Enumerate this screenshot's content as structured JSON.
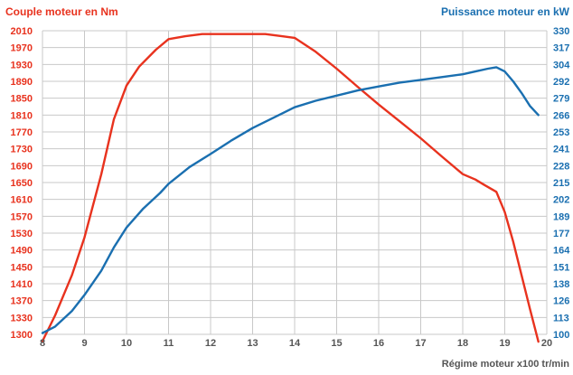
{
  "colors": {
    "torque": "#e8321e",
    "power": "#1a6fb0",
    "grid": "#c8c8c8",
    "axis_text": "#555555",
    "background": "#ffffff"
  },
  "chart_data": {
    "type": "line",
    "title_left": "Couple moteur en Nm",
    "title_right": "Puissance moteur en kW",
    "xlabel": "Régime moteur x100 tr/min",
    "x_ticks": [
      "8",
      "9",
      "10",
      "11",
      "12",
      "13",
      "14",
      "15",
      "16",
      "17",
      "18",
      "19",
      "20"
    ],
    "xlim": [
      8,
      20
    ],
    "y_left_ticks": [
      "2010",
      "1970",
      "1930",
      "1890",
      "1850",
      "1810",
      "1770",
      "1730",
      "1690",
      "1650",
      "1610",
      "1570",
      "1530",
      "1490",
      "1450",
      "1410",
      "1370",
      "1330",
      "1300"
    ],
    "y_right_ticks": [
      "330",
      "317",
      "304",
      "292",
      "279",
      "266",
      "253",
      "241",
      "228",
      "215",
      "202",
      "189",
      "177",
      "164",
      "151",
      "138",
      "126",
      "113",
      "100"
    ],
    "grid": true,
    "series": [
      {
        "axis": "left",
        "color": "#e8321e",
        "points": [
          [
            8.0,
            1288
          ],
          [
            8.3,
            1335
          ],
          [
            8.7,
            1430
          ],
          [
            9.0,
            1520
          ],
          [
            9.4,
            1670
          ],
          [
            9.7,
            1800
          ],
          [
            10.0,
            1880
          ],
          [
            10.3,
            1925
          ],
          [
            10.7,
            1965
          ],
          [
            11.0,
            1990
          ],
          [
            11.4,
            1997
          ],
          [
            11.8,
            2002
          ],
          [
            12.3,
            2002
          ],
          [
            12.8,
            2002
          ],
          [
            13.3,
            2002
          ],
          [
            13.7,
            1997
          ],
          [
            14.0,
            1993
          ],
          [
            14.5,
            1960
          ],
          [
            15.0,
            1920
          ],
          [
            15.5,
            1877
          ],
          [
            16.0,
            1835
          ],
          [
            16.5,
            1795
          ],
          [
            17.0,
            1755
          ],
          [
            17.5,
            1712
          ],
          [
            18.0,
            1670
          ],
          [
            18.3,
            1657
          ],
          [
            18.5,
            1645
          ],
          [
            18.8,
            1628
          ],
          [
            19.0,
            1580
          ],
          [
            19.2,
            1510
          ],
          [
            19.4,
            1430
          ],
          [
            19.6,
            1350
          ],
          [
            19.8,
            1287
          ]
        ]
      },
      {
        "axis": "right",
        "color": "#1a6fb0",
        "points": [
          [
            8.0,
            101
          ],
          [
            8.3,
            106
          ],
          [
            8.7,
            118
          ],
          [
            9.0,
            130
          ],
          [
            9.4,
            148
          ],
          [
            9.7,
            166
          ],
          [
            10.0,
            181
          ],
          [
            10.4,
            195
          ],
          [
            10.8,
            207
          ],
          [
            11.0,
            214
          ],
          [
            11.5,
            227
          ],
          [
            12.0,
            237
          ],
          [
            12.5,
            247
          ],
          [
            13.0,
            256
          ],
          [
            13.5,
            264
          ],
          [
            14.0,
            272
          ],
          [
            14.5,
            277
          ],
          [
            15.0,
            281
          ],
          [
            15.5,
            285
          ],
          [
            16.0,
            288
          ],
          [
            16.5,
            291
          ],
          [
            17.0,
            293
          ],
          [
            17.5,
            295
          ],
          [
            18.0,
            297
          ],
          [
            18.3,
            299
          ],
          [
            18.6,
            301
          ],
          [
            18.8,
            302
          ],
          [
            19.0,
            299
          ],
          [
            19.2,
            292
          ],
          [
            19.4,
            283
          ],
          [
            19.6,
            273
          ],
          [
            19.8,
            266
          ]
        ]
      }
    ]
  }
}
